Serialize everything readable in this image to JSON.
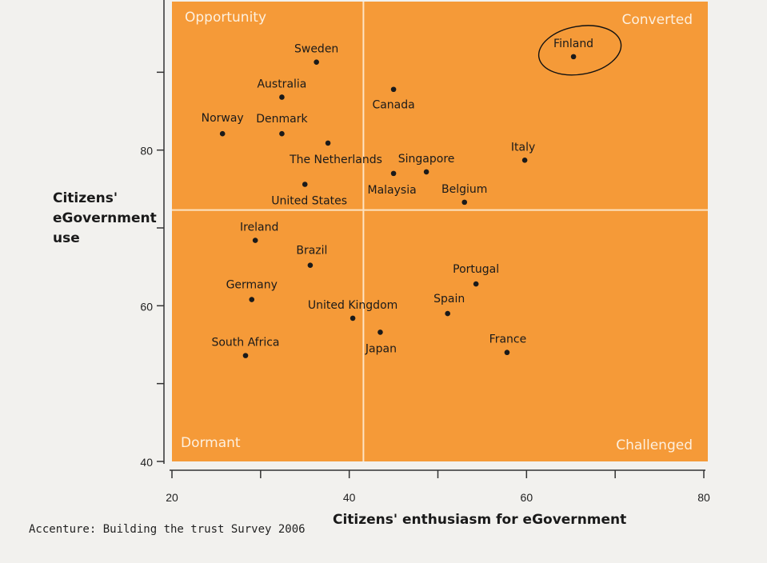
{
  "chart_data": {
    "type": "scatter",
    "xlabel": "Citizens' enthusiasm for eGovernment",
    "ylabel_lines": [
      "Citizens'",
      "eGovernment",
      "use"
    ],
    "xlim": [
      20,
      80
    ],
    "ylim": [
      40,
      100
    ],
    "x_ticks": [
      20,
      40,
      60,
      80
    ],
    "y_ticks": [
      40,
      60,
      80
    ],
    "x_divider": 41.6,
    "y_divider": 72.3,
    "quadrants": {
      "top_left": "Opportunity",
      "top_right": "Converted",
      "bottom_left": "Dormant",
      "bottom_right": "Challenged"
    },
    "highlighted": "Finland",
    "points": [
      {
        "label": "Sweden",
        "x": 36.3,
        "y": 91.3
      },
      {
        "label": "Australia",
        "x": 32.4,
        "y": 86.8
      },
      {
        "label": "Canada",
        "x": 45.0,
        "y": 87.8
      },
      {
        "label": "Finland",
        "x": 65.3,
        "y": 92.0
      },
      {
        "label": "Norway",
        "x": 25.7,
        "y": 82.1
      },
      {
        "label": "Denmark",
        "x": 32.4,
        "y": 82.1
      },
      {
        "label": "The Netherlands",
        "x": 37.6,
        "y": 80.9
      },
      {
        "label": "Italy",
        "x": 59.8,
        "y": 78.7
      },
      {
        "label": "Singapore",
        "x": 48.7,
        "y": 77.2
      },
      {
        "label": "Malaysia",
        "x": 45.0,
        "y": 77.0
      },
      {
        "label": "United States",
        "x": 35.0,
        "y": 75.6
      },
      {
        "label": "Belgium",
        "x": 53.0,
        "y": 73.3
      },
      {
        "label": "Ireland",
        "x": 29.4,
        "y": 68.4
      },
      {
        "label": "Brazil",
        "x": 35.6,
        "y": 65.2
      },
      {
        "label": "Portugal",
        "x": 54.3,
        "y": 62.8
      },
      {
        "label": "Germany",
        "x": 29.0,
        "y": 60.8
      },
      {
        "label": "Spain",
        "x": 51.1,
        "y": 59.0
      },
      {
        "label": "United Kingdom",
        "x": 40.4,
        "y": 58.4
      },
      {
        "label": "Japan",
        "x": 43.5,
        "y": 56.6
      },
      {
        "label": "South Africa",
        "x": 28.3,
        "y": 53.6
      },
      {
        "label": "France",
        "x": 57.8,
        "y": 54.0
      }
    ]
  },
  "caption": "Accenture: Building the trust Survey 2006"
}
